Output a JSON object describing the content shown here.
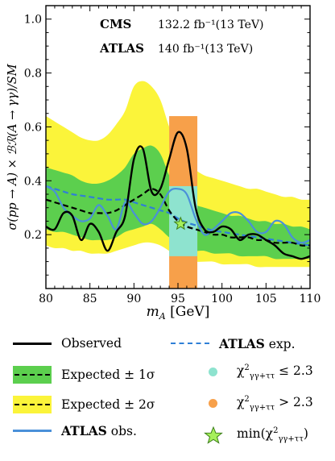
{
  "chart_data": {
    "type": "line",
    "xlabel_main": "m",
    "xlabel_sub": "A",
    "xlabel_unit": " [GeV]",
    "ylabel": "σ(pp → A) × ℬℛ(A → γγ)/SM",
    "xlim": [
      80,
      110
    ],
    "ylim": [
      0.0,
      1.05
    ],
    "x_ticks": [
      "80",
      "85",
      "90",
      "95",
      "100",
      "105",
      "110"
    ],
    "y_ticks": [
      "0.2",
      "0.4",
      "0.6",
      "0.8",
      "1.0"
    ],
    "annotations": [
      {
        "bold": "CMS",
        "text": "132.2 fb⁻¹(13 TeV)"
      },
      {
        "bold": "ATLAS",
        "text": "140 fb⁻¹(13 TeV)"
      }
    ],
    "colors": {
      "observed": "#000000",
      "band1": "#5ccf4e",
      "band2": "#fbf43a",
      "atlas_obs": "#4a90d9",
      "atlas_exp": "#2f7fd6",
      "chi_low": "#8ee3cf",
      "chi_high": "#f7a04a",
      "star": "#a6f05a"
    },
    "x": [
      80,
      81,
      82,
      83,
      84,
      85,
      86,
      87,
      88,
      89,
      90,
      91,
      92,
      93,
      94,
      95,
      96,
      97,
      98,
      99,
      100,
      101,
      102,
      103,
      104,
      105,
      106,
      107,
      108,
      109,
      110
    ],
    "series": [
      {
        "name": "Observed",
        "values": [
          0.23,
          0.22,
          0.28,
          0.27,
          0.18,
          0.24,
          0.21,
          0.14,
          0.21,
          0.27,
          0.48,
          0.52,
          0.36,
          0.37,
          0.48,
          0.58,
          0.52,
          0.3,
          0.22,
          0.21,
          0.23,
          0.22,
          0.18,
          0.2,
          0.2,
          0.18,
          0.16,
          0.13,
          0.12,
          0.11,
          0.12
        ]
      },
      {
        "name": "Expected",
        "values": [
          0.33,
          0.32,
          0.31,
          0.3,
          0.29,
          0.28,
          0.28,
          0.28,
          0.29,
          0.31,
          0.33,
          0.35,
          0.37,
          0.35,
          0.29,
          0.25,
          0.23,
          0.22,
          0.21,
          0.2,
          0.2,
          0.19,
          0.19,
          0.19,
          0.18,
          0.18,
          0.17,
          0.17,
          0.17,
          0.16,
          0.16
        ]
      },
      {
        "name": "ATLAS obs.",
        "values": [
          0.38,
          0.36,
          0.3,
          0.27,
          0.25,
          0.26,
          0.31,
          0.27,
          0.22,
          0.32,
          0.28,
          0.24,
          0.25,
          0.3,
          0.36,
          0.37,
          0.35,
          0.26,
          0.2,
          0.22,
          0.25,
          0.28,
          0.28,
          0.25,
          0.21,
          0.21,
          0.25,
          0.24,
          0.19,
          0.17,
          0.18
        ]
      },
      {
        "name": "ATLAS exp.",
        "values": [
          0.38,
          0.37,
          0.36,
          0.35,
          0.345,
          0.34,
          0.335,
          0.33,
          0.33,
          0.33,
          0.32,
          0.31,
          0.3,
          0.29,
          0.28,
          0.26,
          0.245,
          0.235,
          0.225,
          0.215,
          0.21,
          0.205,
          0.2,
          0.195,
          0.19,
          0.185,
          0.18,
          0.175,
          0.17,
          0.165,
          0.16
        ]
      }
    ],
    "band1_lower": [
      0.22,
      0.21,
      0.21,
      0.2,
      0.19,
      0.18,
      0.18,
      0.18,
      0.19,
      0.21,
      0.22,
      0.23,
      0.24,
      0.22,
      0.19,
      0.17,
      0.15,
      0.14,
      0.14,
      0.13,
      0.13,
      0.13,
      0.12,
      0.12,
      0.12,
      0.12,
      0.11,
      0.11,
      0.11,
      0.11,
      0.11
    ],
    "band1_upper": [
      0.45,
      0.44,
      0.43,
      0.42,
      0.4,
      0.39,
      0.39,
      0.4,
      0.42,
      0.45,
      0.5,
      0.52,
      0.53,
      0.5,
      0.42,
      0.36,
      0.33,
      0.31,
      0.3,
      0.29,
      0.28,
      0.27,
      0.27,
      0.26,
      0.25,
      0.25,
      0.24,
      0.24,
      0.23,
      0.23,
      0.22
    ],
    "band2_lower": [
      0.16,
      0.15,
      0.15,
      0.14,
      0.14,
      0.13,
      0.13,
      0.13,
      0.14,
      0.15,
      0.16,
      0.17,
      0.17,
      0.16,
      0.14,
      0.12,
      0.11,
      0.1,
      0.1,
      0.1,
      0.09,
      0.09,
      0.09,
      0.09,
      0.08,
      0.08,
      0.08,
      0.08,
      0.08,
      0.08,
      0.08
    ],
    "band2_upper": [
      0.64,
      0.62,
      0.6,
      0.58,
      0.56,
      0.55,
      0.55,
      0.57,
      0.61,
      0.66,
      0.75,
      0.77,
      0.75,
      0.7,
      0.6,
      0.52,
      0.47,
      0.44,
      0.42,
      0.41,
      0.4,
      0.39,
      0.38,
      0.37,
      0.37,
      0.36,
      0.35,
      0.34,
      0.34,
      0.33,
      0.33
    ],
    "chi_high_region": {
      "x": [
        94.0,
        97.2
      ],
      "y": [
        0.0,
        0.64
      ]
    },
    "chi_low_region": {
      "x": [
        94.0,
        97.2
      ],
      "y": [
        0.12,
        0.38
      ]
    },
    "min_point": {
      "x": 95.3,
      "y": 0.24
    },
    "legend": [
      {
        "key": "observed",
        "label": "Observed"
      },
      {
        "key": "atlas_exp",
        "bold": "ATLAS",
        "label": " exp."
      },
      {
        "key": "band1",
        "label": "Expected ± 1σ"
      },
      {
        "key": "chi_low",
        "label": "χ",
        "sup": "2",
        "sub": "γγ+ττ",
        "tail": " ≤ 2.3"
      },
      {
        "key": "band2",
        "label": "Expected ± 2σ"
      },
      {
        "key": "chi_high",
        "label": "χ",
        "sup": "2",
        "sub": "γγ+ττ",
        "tail": " > 2.3"
      },
      {
        "key": "atlas_obs",
        "bold": "ATLAS",
        "label": " obs."
      },
      {
        "key": "star",
        "label": "min(χ",
        "sup": "2",
        "sub": "γγ+ττ",
        "tail": ")"
      }
    ]
  }
}
